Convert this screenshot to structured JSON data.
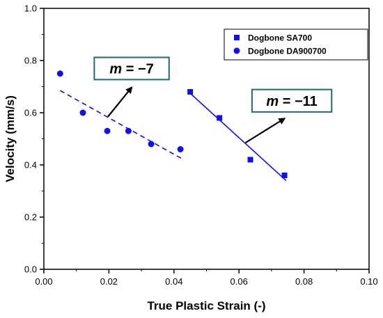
{
  "chart_data": {
    "type": "scatter",
    "xlabel": "True Plastic Strain (-)",
    "ylabel": "Velocity (mm/s)",
    "xlim": [
      0.0,
      0.1
    ],
    "ylim": [
      0.0,
      1.0
    ],
    "x_ticks": [
      "0.00",
      "0.02",
      "0.04",
      "0.06",
      "0.08",
      "0.10"
    ],
    "y_ticks": [
      "0.0",
      "0.2",
      "0.4",
      "0.6",
      "0.8",
      "1.0"
    ],
    "grid": false,
    "legend_position": "top-right",
    "series": [
      {
        "name": "Dogbone SA700",
        "marker": "square",
        "color": "#1010ee",
        "points": [
          {
            "x": 0.045,
            "y": 0.68
          },
          {
            "x": 0.054,
            "y": 0.58
          },
          {
            "x": 0.0635,
            "y": 0.42
          },
          {
            "x": 0.074,
            "y": 0.36
          }
        ],
        "fit": {
          "style": "solid",
          "x": [
            0.0445,
            0.0745
          ],
          "y": [
            0.68,
            0.34
          ]
        }
      },
      {
        "name": "Dogbone DA900700",
        "marker": "circle",
        "color": "#1010ee",
        "points": [
          {
            "x": 0.005,
            "y": 0.75
          },
          {
            "x": 0.012,
            "y": 0.6
          },
          {
            "x": 0.0195,
            "y": 0.53
          },
          {
            "x": 0.026,
            "y": 0.53
          },
          {
            "x": 0.033,
            "y": 0.48
          },
          {
            "x": 0.042,
            "y": 0.46
          }
        ],
        "fit": {
          "style": "dashed",
          "x": [
            0.005,
            0.043
          ],
          "y": [
            0.685,
            0.42
          ]
        }
      }
    ],
    "annotations": [
      {
        "m_label": "m",
        "rest_label": " = −7",
        "box": {
          "x1": 0.0155,
          "y1": 0.812,
          "x2": 0.0385,
          "y2": 0.727
        },
        "arrow": {
          "x1": 0.0197,
          "y1": 0.585,
          "x2": 0.027,
          "y2": 0.697
        }
      },
      {
        "m_label": "m",
        "rest_label": " = −11",
        "box": {
          "x1": 0.064,
          "y1": 0.689,
          "x2": 0.0885,
          "y2": 0.603
        },
        "arrow": {
          "x1": 0.062,
          "y1": 0.485,
          "x2": 0.074,
          "y2": 0.578
        }
      }
    ],
    "colors": {
      "series": "#1010ee",
      "annotation_box_border": "#1e6a73"
    }
  }
}
